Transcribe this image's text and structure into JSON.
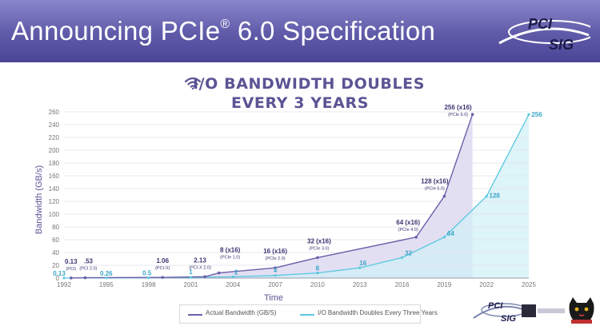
{
  "slide": {
    "title": "Announcing PCIe",
    "title_sup": "®",
    "title_rest": " 6.0 Specification",
    "logo_top": "PCI",
    "logo_bottom": "SIG",
    "headline_line1": "I/O BANDWIDTH DOUBLES",
    "headline_line2": "EVERY 3 YEARS",
    "headline_icon": "wifi-icon",
    "footer_logo_top": "PCI",
    "footer_logo_bottom": "SIG"
  },
  "chart_data": {
    "type": "line",
    "title": "I/O BANDWIDTH DOUBLES EVERY 3 YEARS",
    "xlabel": "Time",
    "ylabel": "Bandwidth (GB/s)",
    "xlim": [
      1992,
      2025
    ],
    "ylim": [
      0,
      260
    ],
    "x_ticks": [
      1992,
      1995,
      1998,
      2001,
      2004,
      2007,
      2010,
      2013,
      2016,
      2019,
      2022,
      2025
    ],
    "y_ticks": [
      0,
      20,
      40,
      60,
      80,
      100,
      120,
      140,
      160,
      180,
      200,
      220,
      240,
      260
    ],
    "grid": true,
    "legend_position": "bottom-center",
    "series": [
      {
        "name": "Actual Bandwidth (GB/S)",
        "color": "#6a5fa8",
        "points": [
          {
            "x": 1992.5,
            "y": 0.13,
            "label": "0.13",
            "sublabel": "(PCI)"
          },
          {
            "x": 1993.5,
            "y": 0.53,
            "label": ".53",
            "sublabel": "(PCI 2.0)"
          },
          {
            "x": 1999.0,
            "y": 1.06,
            "label": "1.06",
            "sublabel": "(PCI-X)"
          },
          {
            "x": 2002.0,
            "y": 2.13,
            "label": "2.13",
            "sublabel": "(PCI-X 2.0)"
          },
          {
            "x": 2003.0,
            "y": 8,
            "label": "8 (x16)",
            "sublabel": "(PCIe 1.0)"
          },
          {
            "x": 2007.0,
            "y": 16,
            "label": "16 (x16)",
            "sublabel": "(PCIe 2.0)"
          },
          {
            "x": 2010.0,
            "y": 32,
            "label": "32 (x16)",
            "sublabel": "(PCIe 3.0)"
          },
          {
            "x": 2017.0,
            "y": 64,
            "label": "64 (x16)",
            "sublabel": "(PCIe 4.0)"
          },
          {
            "x": 2019.0,
            "y": 128,
            "label": "128 (x16)",
            "sublabel": "(PCIe 5.0)"
          },
          {
            "x": 2021.0,
            "y": 256,
            "label": "256 (x16)",
            "sublabel": "(PCIe 6.0)"
          }
        ]
      },
      {
        "name": "I/O Bandwidth Doubles Every Three Years",
        "color": "#5ac8e0",
        "points": [
          {
            "x": 1992,
            "y": 0.13,
            "label": "0.13"
          },
          {
            "x": 1995,
            "y": 0.26,
            "label": "0.26"
          },
          {
            "x": 1998,
            "y": 0.5,
            "label": "0.5"
          },
          {
            "x": 2001,
            "y": 1,
            "label": "1"
          },
          {
            "x": 2004,
            "y": 2,
            "label": "2"
          },
          {
            "x": 2007,
            "y": 4,
            "label": "4"
          },
          {
            "x": 2010,
            "y": 8,
            "label": "8"
          },
          {
            "x": 2013,
            "y": 16,
            "label": "16"
          },
          {
            "x": 2016,
            "y": 32,
            "label": "32"
          },
          {
            "x": 2019,
            "y": 64,
            "label": "64"
          },
          {
            "x": 2022,
            "y": 128,
            "label": "128"
          },
          {
            "x": 2025,
            "y": 256,
            "label": "256"
          }
        ]
      }
    ]
  }
}
